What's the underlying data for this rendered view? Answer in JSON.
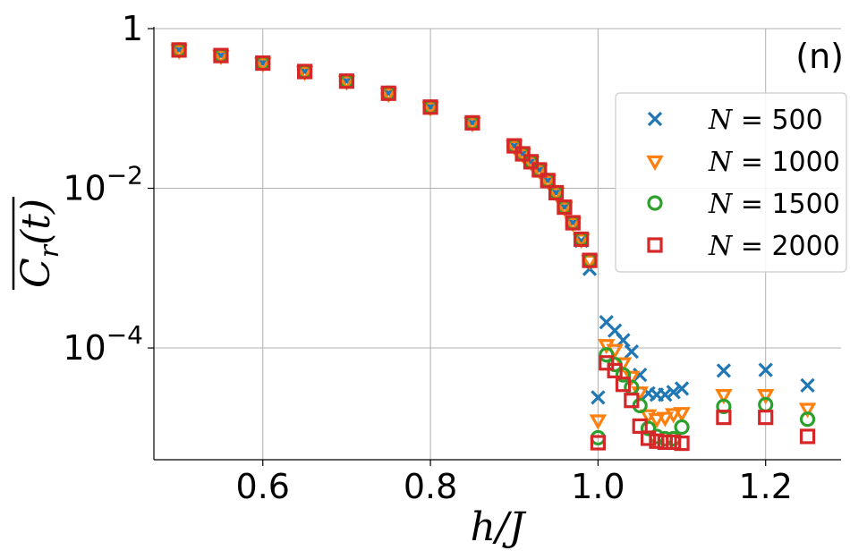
{
  "chart_data": {
    "type": "scatter",
    "panel_label": "(n)",
    "xlabel": "h/J",
    "ylabel": "C_r(t) (time-averaged, overline)",
    "xlim": [
      0.47,
      1.29
    ],
    "ylim_log10": [
      -5.4,
      0.0
    ],
    "yscale": "log",
    "grid": true,
    "legend_position": "upper-right",
    "x_ticks": [
      {
        "value": 0.6,
        "label": "0.6"
      },
      {
        "value": 0.8,
        "label": "0.8"
      },
      {
        "value": 1.0,
        "label": "1.0"
      },
      {
        "value": 1.2,
        "label": "1.2"
      }
    ],
    "y_ticks": [
      {
        "value": 1,
        "label": "1",
        "exp": ""
      },
      {
        "value": 0.01,
        "label": "10",
        "exp": "−2"
      },
      {
        "value": 0.0001,
        "label": "10",
        "exp": "−4"
      }
    ],
    "series": [
      {
        "name": "N = 500",
        "legend_prefix": "N",
        "legend_value": "500",
        "marker": "x",
        "color": "#1f77b4",
        "x": [
          0.5,
          0.55,
          0.6,
          0.65,
          0.7,
          0.75,
          0.8,
          0.85,
          0.9,
          0.91,
          0.92,
          0.93,
          0.94,
          0.95,
          0.96,
          0.97,
          0.98,
          0.99,
          1.0,
          1.01,
          1.02,
          1.03,
          1.04,
          1.05,
          1.06,
          1.07,
          1.08,
          1.09,
          1.1,
          1.15,
          1.2,
          1.25
        ],
        "y": [
          0.54,
          0.46,
          0.37,
          0.29,
          0.22,
          0.155,
          0.104,
          0.066,
          0.034,
          0.027,
          0.0215,
          0.017,
          0.0125,
          0.0088,
          0.0058,
          0.0037,
          0.0022,
          0.00098,
          2.4e-05,
          0.00021,
          0.000165,
          0.000125,
          9e-05,
          4.6e-05,
          2.7e-05,
          2.6e-05,
          2.6e-05,
          2.8e-05,
          3.1e-05,
          5.2e-05,
          5.3e-05,
          3.4e-05
        ]
      },
      {
        "name": "N = 1000",
        "legend_prefix": "N",
        "legend_value": "1000",
        "marker": "triangle-down",
        "color": "#ff7f0e",
        "x": [
          0.5,
          0.55,
          0.6,
          0.65,
          0.7,
          0.75,
          0.8,
          0.85,
          0.9,
          0.91,
          0.92,
          0.93,
          0.94,
          0.95,
          0.96,
          0.97,
          0.98,
          0.99,
          1.0,
          1.01,
          1.02,
          1.03,
          1.04,
          1.05,
          1.06,
          1.07,
          1.08,
          1.09,
          1.1,
          1.15,
          1.2,
          1.25
        ],
        "y": [
          0.54,
          0.46,
          0.37,
          0.29,
          0.22,
          0.155,
          0.104,
          0.066,
          0.034,
          0.027,
          0.0215,
          0.017,
          0.0125,
          0.0088,
          0.0058,
          0.0037,
          0.0023,
          0.00125,
          1.25e-05,
          0.00011,
          9.55e-05,
          6.5e-05,
          4.4e-05,
          2.8e-05,
          1.45e-05,
          1.3e-05,
          1.35e-05,
          1.5e-05,
          1.55e-05,
          2.6e-05,
          2.6e-05,
          1.75e-05
        ]
      },
      {
        "name": "N = 1500",
        "legend_prefix": "N",
        "legend_value": "1500",
        "marker": "circle",
        "color": "#2ca02c",
        "x": [
          0.5,
          0.55,
          0.6,
          0.65,
          0.7,
          0.75,
          0.8,
          0.85,
          0.9,
          0.91,
          0.92,
          0.93,
          0.94,
          0.95,
          0.96,
          0.97,
          0.98,
          0.99,
          1.0,
          1.01,
          1.02,
          1.03,
          1.04,
          1.05,
          1.06,
          1.07,
          1.08,
          1.09,
          1.1,
          1.15,
          1.2,
          1.25
        ],
        "y": [
          0.54,
          0.46,
          0.37,
          0.29,
          0.22,
          0.155,
          0.104,
          0.066,
          0.034,
          0.027,
          0.0215,
          0.017,
          0.0125,
          0.0088,
          0.0058,
          0.0037,
          0.0023,
          0.00125,
          7.5e-06,
          8.2e-05,
          6.2e-05,
          4.6e-05,
          3.2e-05,
          1.9e-05,
          9.8e-06,
          7.8e-06,
          7.3e-06,
          7.3e-06,
          1.02e-05,
          1.85e-05,
          1.95e-05,
          1.28e-05
        ]
      },
      {
        "name": "N = 2000",
        "legend_prefix": "N",
        "legend_value": "2000",
        "marker": "square",
        "color": "#d62728",
        "x": [
          0.5,
          0.55,
          0.6,
          0.65,
          0.7,
          0.75,
          0.8,
          0.85,
          0.9,
          0.91,
          0.92,
          0.93,
          0.94,
          0.95,
          0.96,
          0.97,
          0.98,
          0.99,
          1.0,
          1.01,
          1.02,
          1.03,
          1.04,
          1.05,
          1.06,
          1.07,
          1.08,
          1.09,
          1.1,
          1.15,
          1.2,
          1.25
        ],
        "y": [
          0.54,
          0.46,
          0.37,
          0.29,
          0.22,
          0.155,
          0.104,
          0.066,
          0.034,
          0.027,
          0.0215,
          0.017,
          0.0125,
          0.0088,
          0.0058,
          0.0037,
          0.0023,
          0.00125,
          6.5e-06,
          6.5e-05,
          5.2e-05,
          3.5e-05,
          2.2e-05,
          1.05e-05,
          7.4e-06,
          6.8e-06,
          6.6e-06,
          6.6e-06,
          6.4e-06,
          1.35e-05,
          1.35e-05,
          7.8e-06
        ]
      }
    ]
  }
}
